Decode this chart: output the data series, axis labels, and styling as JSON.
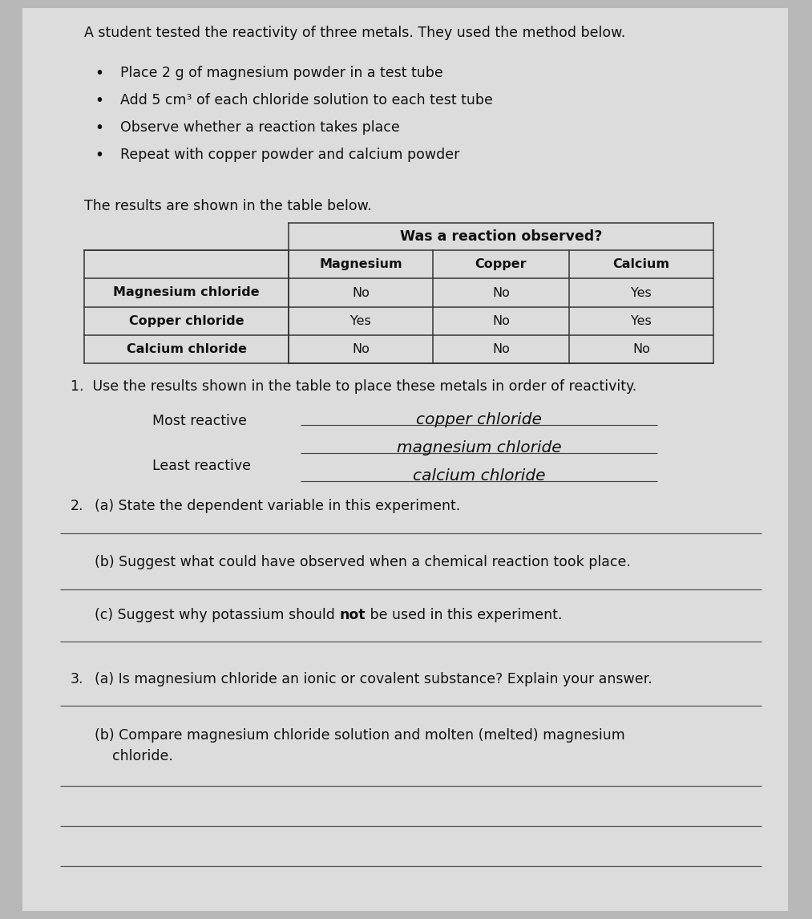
{
  "bg_color": "#b8b8b8",
  "paper_color": "#dcdcdc",
  "title": "A student tested the reactivity of three metals. They used the method below.",
  "bullets": [
    "Place 2 g of magnesium powder in a test tube",
    "Add 5 cm³ of each chloride solution to each test tube",
    "Observe whether a reaction takes place",
    "Repeat with copper powder and calcium powder"
  ],
  "table_intro": "The results are shown in the table below.",
  "table_header_top": "Was a reaction observed?",
  "table_col_headers": [
    "Magnesium",
    "Copper",
    "Calcium"
  ],
  "table_row_headers": [
    "Magnesium chloride",
    "Copper chloride",
    "Calcium chloride"
  ],
  "table_data": [
    [
      "No",
      "No",
      "Yes"
    ],
    [
      "Yes",
      "No",
      "Yes"
    ],
    [
      "No",
      "No",
      "No"
    ]
  ],
  "q1_text": "1.  Use the results shown in the table to place these metals in order of reactivity.",
  "most_reactive_label": "Most reactive",
  "least_reactive_label": "Least reactive",
  "handwritten_line1": "copper chloride",
  "handwritten_line2": "magnesium chloride",
  "handwritten_line3": "calcium chloride",
  "q2_label": "2.",
  "q2a_text": "(a) State the dependent variable in this experiment.",
  "q2b_text": "(b) Suggest what could have observed when a chemical reaction took place.",
  "q2c_pre": "(c) Suggest why potassium should ",
  "q2c_bold": "not",
  "q2c_post": " be used in this experiment.",
  "q3_label": "3.",
  "q3a_text": "(a) Is magnesium chloride an ionic or covalent substance? Explain your answer.",
  "q3b_line1": "(b) Compare magnesium chloride solution and molten (melted) magnesium",
  "q3b_line2": "    chloride.",
  "text_color": "#111111",
  "line_color": "#555555",
  "table_border_color": "#333333",
  "font_size": 12.5,
  "font_size_table": 11.5
}
